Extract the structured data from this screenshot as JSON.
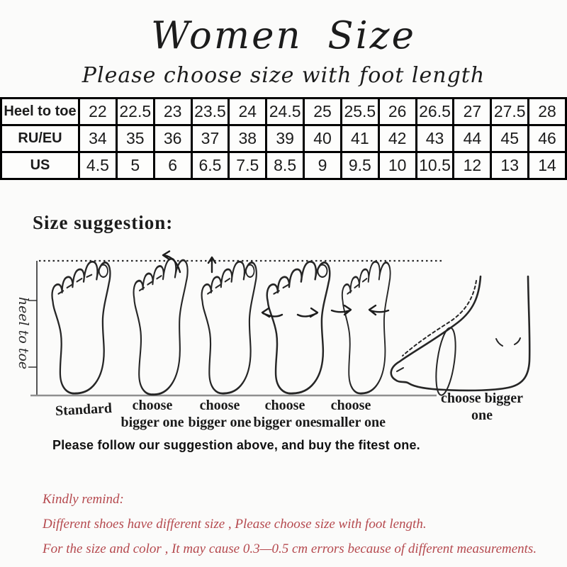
{
  "page": {
    "background": "#fbfbfa"
  },
  "title": "Women Size",
  "subtitle": "Please choose size with foot length",
  "size_table": {
    "rows": [
      {
        "label": "Heel to toe",
        "values": [
          "22",
          "22.5",
          "23",
          "23.5",
          "24",
          "24.5",
          "25",
          "25.5",
          "26",
          "26.5",
          "27",
          "27.5",
          "28"
        ]
      },
      {
        "label": "RU/EU",
        "values": [
          "34",
          "35",
          "36",
          "37",
          "38",
          "39",
          "40",
          "41",
          "42",
          "43",
          "44",
          "45",
          "46"
        ]
      },
      {
        "label": "US",
        "values": [
          "4.5",
          "5",
          "6",
          "6.5",
          "7.5",
          "8.5",
          "9",
          "9.5",
          "10",
          "10.5",
          "12",
          "13",
          "14"
        ]
      }
    ]
  },
  "suggestion": {
    "heading": "Size suggestion:",
    "axis_label": "heel to toe",
    "feet": [
      {
        "icon": "foot-top-view-standard-icon",
        "label": "Standard"
      },
      {
        "icon": "foot-top-view-long-toes-icon",
        "label": "choose bigger one"
      },
      {
        "icon": "foot-top-view-long-second-toe-icon",
        "label": "choose bigger one"
      },
      {
        "icon": "foot-top-view-wide-icon",
        "label": "choose bigger one"
      },
      {
        "icon": "foot-top-view-narrow-icon",
        "label": "choose smaller one"
      },
      {
        "icon": "foot-side-view-high-instep-icon",
        "label": "choose bigger one"
      }
    ],
    "note": "Please follow our suggestion above, and buy the fitest one."
  },
  "remind": {
    "heading": "Kindly remind:",
    "lines": [
      "Different shoes have different size , Please choose size with foot length.",
      "For the size and color , It may cause 0.3—0.5 cm errors because of different measurements."
    ],
    "text_color": "#b5494e"
  }
}
